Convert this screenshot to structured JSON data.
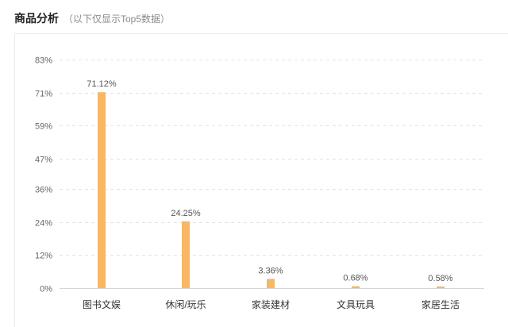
{
  "header": {
    "title": "商品分析",
    "subtitle": "（以下仅显示Top5数据）"
  },
  "colors": {
    "bar": "#f7b764",
    "grid": "#e3e3e3"
  },
  "chart_data": {
    "type": "bar",
    "categories": [
      "图书文娱",
      "休闲/玩乐",
      "家装建材",
      "文具玩具",
      "家居生活"
    ],
    "values": [
      71.12,
      24.25,
      3.36,
      0.68,
      0.58
    ],
    "value_labels": [
      "71.12%",
      "24.25%",
      "3.36%",
      "0.68%",
      "0.58%"
    ],
    "y_ticks": [
      "0%",
      "12%",
      "24%",
      "36%",
      "47%",
      "59%",
      "71%",
      "83%"
    ],
    "y_tick_values": [
      0,
      12,
      24,
      36,
      47,
      59,
      71,
      83
    ],
    "ylim": [
      0,
      83
    ],
    "grid": true,
    "grid_style": "dashed",
    "legend": "none"
  }
}
